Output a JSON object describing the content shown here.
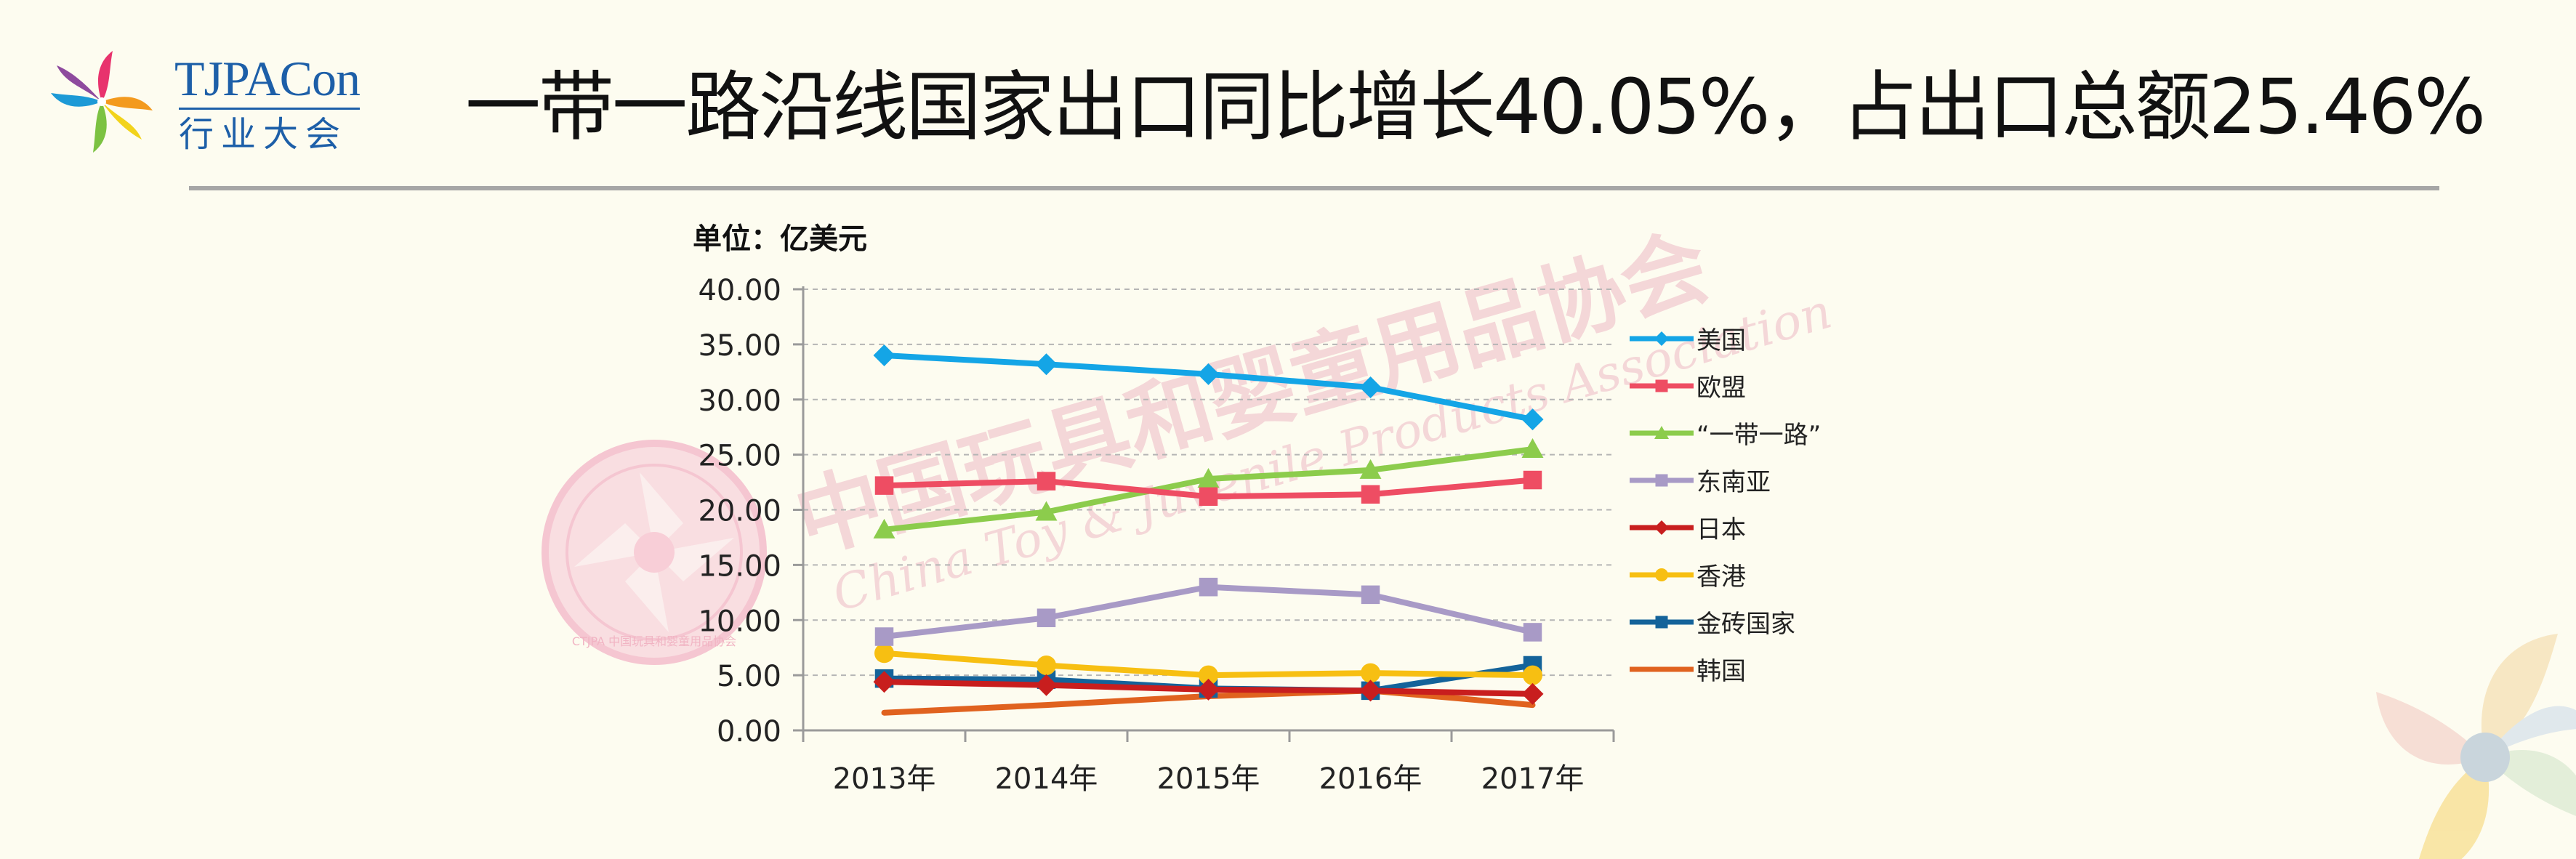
{
  "logo": {
    "name_en": "TJPACon",
    "name_zh": "行业大会"
  },
  "title": "一带一路沿线国家出口同比增长40.05%，占出口总额25.46%",
  "watermark": {
    "zh": "中国玩具和婴童用品协会",
    "en": "China Toy & Juvenile Products Association",
    "seal": "CTJPA 中国玩具和婴童用品协会"
  },
  "chart_data": {
    "type": "line",
    "unit_label": "单位：亿美元",
    "categories": [
      "2013年",
      "2014年",
      "2015年",
      "2016年",
      "2017年"
    ],
    "y_ticks": [
      "40.00",
      "35.00",
      "30.00",
      "25.00",
      "20.00",
      "15.00",
      "10.00",
      "5.00",
      "0.00"
    ],
    "ylim": [
      0,
      40
    ],
    "grid": true,
    "legend_position": "right",
    "series": [
      {
        "name": "美国",
        "color": "#14a5e6",
        "marker": "diamond",
        "values": [
          34.0,
          33.2,
          32.3,
          31.1,
          28.2
        ]
      },
      {
        "name": "欧盟",
        "color": "#ee4d63",
        "marker": "square",
        "values": [
          22.2,
          22.6,
          21.2,
          21.4,
          22.7
        ]
      },
      {
        "name": "“一带一路”",
        "color": "#8ccc4c",
        "marker": "triangle",
        "values": [
          18.2,
          19.8,
          22.8,
          23.6,
          25.5
        ]
      },
      {
        "name": "东南亚",
        "color": "#a89ac6",
        "marker": "square",
        "values": [
          8.5,
          10.2,
          13.0,
          12.3,
          8.9
        ]
      },
      {
        "name": "日本",
        "color": "#c81e1e",
        "marker": "diamond",
        "values": [
          4.4,
          4.1,
          3.7,
          3.6,
          3.3
        ]
      },
      {
        "name": "香港",
        "color": "#f7bf12",
        "marker": "circle",
        "values": [
          7.0,
          5.9,
          5.0,
          5.2,
          5.0
        ]
      },
      {
        "name": "金砖国家",
        "color": "#14639a",
        "marker": "square",
        "values": [
          4.7,
          4.6,
          3.8,
          3.6,
          5.9
        ]
      },
      {
        "name": "韩国",
        "color": "#e0621f",
        "marker": "none",
        "values": [
          1.6,
          2.3,
          3.1,
          3.6,
          2.3
        ]
      }
    ]
  }
}
